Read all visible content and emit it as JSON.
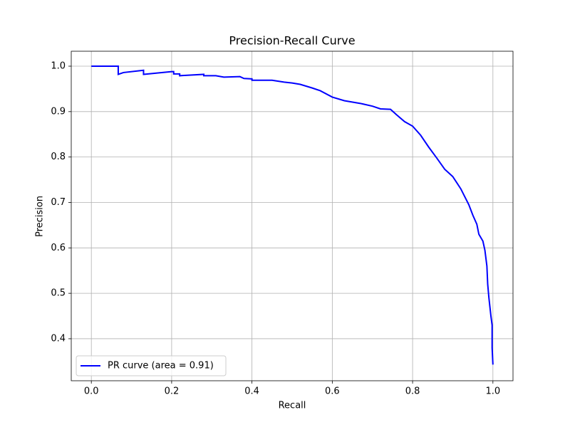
{
  "chart_data": {
    "type": "line",
    "title": "Precision-Recall Curve",
    "x_label": "Recall",
    "y_label": "Precision",
    "x": [
      0,
      0.067,
      0.067,
      0.08,
      0.13,
      0.13,
      0.2,
      0.205,
      0.205,
      0.22,
      0.22,
      0.28,
      0.28,
      0.31,
      0.33,
      0.37,
      0.38,
      0.4,
      0.4,
      0.45,
      0.48,
      0.5,
      0.52,
      0.55,
      0.57,
      0.6,
      0.63,
      0.67,
      0.7,
      0.72,
      0.745,
      0.76,
      0.78,
      0.8,
      0.82,
      0.84,
      0.86,
      0.88,
      0.9,
      0.92,
      0.94,
      0.95,
      0.96,
      0.965,
      0.975,
      0.98,
      0.985,
      0.987,
      0.99,
      0.995,
      0.998,
      0.998,
      1.0
    ],
    "series": [
      {
        "name": "PR curve (area = 0.91)",
        "color": "#0000ff",
        "values": [
          1.0,
          1.0,
          0.982,
          0.986,
          0.991,
          0.982,
          0.988,
          0.988,
          0.983,
          0.983,
          0.979,
          0.982,
          0.979,
          0.979,
          0.976,
          0.977,
          0.973,
          0.972,
          0.969,
          0.969,
          0.965,
          0.963,
          0.96,
          0.952,
          0.946,
          0.932,
          0.924,
          0.918,
          0.912,
          0.906,
          0.905,
          0.893,
          0.878,
          0.868,
          0.848,
          0.822,
          0.798,
          0.773,
          0.757,
          0.73,
          0.695,
          0.672,
          0.652,
          0.63,
          0.615,
          0.595,
          0.56,
          0.52,
          0.49,
          0.45,
          0.43,
          0.38,
          0.343
        ]
      }
    ],
    "xlim": [
      -0.05,
      1.05
    ],
    "ylim": [
      0.3075,
      1.0329
    ],
    "xticks": [
      {
        "value": 0,
        "label": "0.0"
      },
      0.2,
      0.4,
      0.6,
      0.8,
      {
        "value": 1,
        "label": "1.0"
      }
    ],
    "yticks": [
      0.4,
      0.5,
      0.6,
      0.7,
      0.8,
      0.9,
      {
        "value": 1,
        "label": "1.0"
      }
    ],
    "grid": true,
    "legend_loc": "lower-left"
  }
}
